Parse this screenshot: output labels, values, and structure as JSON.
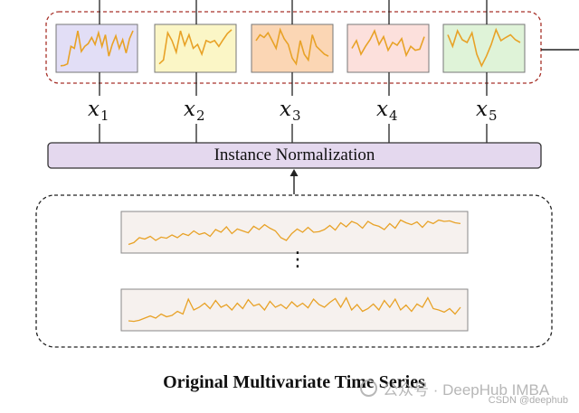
{
  "labels": [
    "x",
    "x",
    "x",
    "x",
    "x"
  ],
  "subscripts": [
    "1",
    "2",
    "3",
    "4",
    "5"
  ],
  "normalization_label": "Instance Normalization",
  "caption": "Original Multivariate Time Series",
  "ellipsis": "⋮",
  "watermark": "公众号 · DeepHub IMBA",
  "watermark_small": "CSDN @deephub",
  "colors": {
    "series_line": "#e8a227",
    "patch_fills": [
      "#e2def6",
      "#fbf6c6",
      "#fbd6b4",
      "#fce0dc",
      "#dff3d8"
    ],
    "normalization_fill": "#e4d8ee",
    "top_border": "#a8322a",
    "bottom_border": "#222222",
    "series_box_fill": "#f6f1ee"
  },
  "series": {
    "patches": [
      [
        0.05,
        0.06,
        0.1,
        0.55,
        0.5,
        0.95,
        0.42,
        0.55,
        0.62,
        0.78,
        0.6,
        0.9,
        0.55,
        0.85,
        0.3,
        0.6,
        0.82,
        0.5,
        0.72,
        0.38,
        0.75,
        0.95
      ],
      [
        0.1,
        0.2,
        0.9,
        0.7,
        0.4,
        0.95,
        0.58,
        0.85,
        0.5,
        0.6,
        0.35,
        0.7,
        0.65,
        0.7,
        0.55,
        0.72,
        0.88,
        0.98
      ],
      [
        0.7,
        0.85,
        0.78,
        0.9,
        0.7,
        0.5,
        0.98,
        0.75,
        0.6,
        0.25,
        0.1,
        0.7,
        0.35,
        0.2,
        0.85,
        0.55,
        0.45,
        0.35,
        0.3
      ],
      [
        0.5,
        0.7,
        0.35,
        0.55,
        0.72,
        0.95,
        0.6,
        0.8,
        0.45,
        0.65,
        0.58,
        0.75,
        0.32,
        0.55,
        0.45,
        0.48,
        0.8
      ],
      [
        0.85,
        0.55,
        0.95,
        0.72,
        0.65,
        0.9,
        0.35,
        0.05,
        0.3,
        0.6,
        0.98,
        0.7,
        0.78,
        0.85,
        0.72,
        0.65
      ]
    ],
    "series_1": [
      0.05,
      0.12,
      0.3,
      0.25,
      0.35,
      0.2,
      0.32,
      0.28,
      0.4,
      0.3,
      0.45,
      0.38,
      0.55,
      0.42,
      0.48,
      0.35,
      0.6,
      0.5,
      0.7,
      0.45,
      0.62,
      0.55,
      0.48,
      0.72,
      0.6,
      0.78,
      0.65,
      0.55,
      0.3,
      0.2,
      0.45,
      0.62,
      0.5,
      0.68,
      0.5,
      0.52,
      0.6,
      0.75,
      0.58,
      0.85,
      0.7,
      0.9,
      0.82,
      0.65,
      0.9,
      0.78,
      0.72,
      0.6,
      0.82,
      0.65,
      0.95,
      0.85,
      0.78,
      0.88,
      0.68,
      0.9,
      0.82,
      0.95,
      0.9,
      0.92,
      0.85,
      0.82
    ],
    "series_2": [
      0.1,
      0.08,
      0.12,
      0.2,
      0.28,
      0.2,
      0.35,
      0.25,
      0.3,
      0.45,
      0.35,
      0.9,
      0.5,
      0.6,
      0.75,
      0.55,
      0.85,
      0.6,
      0.7,
      0.5,
      0.75,
      0.55,
      0.88,
      0.65,
      0.72,
      0.5,
      0.82,
      0.6,
      0.7,
      0.55,
      0.8,
      0.62,
      0.75,
      0.58,
      0.9,
      0.7,
      0.6,
      0.78,
      0.92,
      0.6,
      0.95,
      0.5,
      0.7,
      0.45,
      0.55,
      0.72,
      0.5,
      0.85,
      0.6,
      0.9,
      0.5,
      0.68,
      0.45,
      0.72,
      0.6,
      0.95,
      0.55,
      0.5,
      0.42,
      0.55,
      0.35,
      0.6
    ]
  }
}
